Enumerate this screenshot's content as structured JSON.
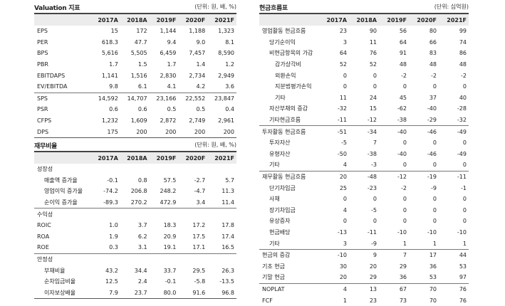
{
  "valuation": {
    "title": "Valuation 지표",
    "unit": "(단위: 원, 배, %)",
    "columns": [
      "",
      "2017A",
      "2018A",
      "2019F",
      "2020F",
      "2021F"
    ],
    "rows": [
      {
        "label": "EPS",
        "values": [
          "15",
          "172",
          "1,144",
          "1,188",
          "1,323"
        ]
      },
      {
        "label": "PER",
        "values": [
          "618.3",
          "47.7",
          "9.4",
          "9.0",
          "8.1"
        ]
      },
      {
        "label": "BPS",
        "values": [
          "5,616",
          "5,505",
          "6,459",
          "7,457",
          "8,590"
        ]
      },
      {
        "label": "PBR",
        "values": [
          "1.7",
          "1.5",
          "1.7",
          "1.4",
          "1.2"
        ]
      },
      {
        "label": "EBITDAPS",
        "values": [
          "1,141",
          "1,516",
          "2,830",
          "2,734",
          "2,949"
        ]
      },
      {
        "label": "EV/EBITDA",
        "values": [
          "9.8",
          "6.1",
          "4.1",
          "4.2",
          "3.6"
        ]
      },
      {
        "label": "SPS",
        "values": [
          "14,592",
          "14,707",
          "23,166",
          "22,552",
          "23,847"
        ],
        "sep": true
      },
      {
        "label": "PSR",
        "values": [
          "0.6",
          "0.6",
          "0.5",
          "0.5",
          "0.4"
        ]
      },
      {
        "label": "CFPS",
        "values": [
          "1,232",
          "1,609",
          "2,872",
          "2,749",
          "2,961"
        ]
      },
      {
        "label": "DPS",
        "values": [
          "175",
          "200",
          "200",
          "200",
          "200"
        ]
      }
    ]
  },
  "ratios": {
    "title": "재무비율",
    "unit": "(단위: 원, 배, %)",
    "columns": [
      "",
      "2017A",
      "2018A",
      "2019F",
      "2020F",
      "2021F"
    ],
    "rows": [
      {
        "label": "성장성",
        "values": [
          "",
          "",
          "",
          "",
          ""
        ],
        "level": 1
      },
      {
        "label": "매출액 증가율",
        "values": [
          "-0.1",
          "0.8",
          "57.5",
          "-2.7",
          "5.7"
        ],
        "level": 2
      },
      {
        "label": "영업이익 증가율",
        "values": [
          "-74.2",
          "206.8",
          "248.2",
          "-4.7",
          "11.3"
        ],
        "level": 2
      },
      {
        "label": "순이익 증가율",
        "values": [
          "-89.3",
          "270.2",
          "472.9",
          "3.4",
          "11.4"
        ],
        "level": 2
      },
      {
        "label": "수익성",
        "values": [
          "",
          "",
          "",
          "",
          ""
        ],
        "level": 1,
        "sep": true
      },
      {
        "label": "ROIC",
        "values": [
          "1.0",
          "3.7",
          "18.3",
          "17.2",
          "17.8"
        ],
        "level": 1
      },
      {
        "label": "ROA",
        "values": [
          "1.9",
          "6.2",
          "20.9",
          "17.5",
          "17.4"
        ],
        "level": 1
      },
      {
        "label": "ROE",
        "values": [
          "0.3",
          "3.1",
          "19.1",
          "17.1",
          "16.5"
        ],
        "level": 1
      },
      {
        "label": "안정성",
        "values": [
          "",
          "",
          "",
          "",
          ""
        ],
        "level": 1,
        "sep": true
      },
      {
        "label": "부채비율",
        "values": [
          "43.2",
          "34.4",
          "33.7",
          "29.5",
          "26.3"
        ],
        "level": 2
      },
      {
        "label": "순차입금비율",
        "values": [
          "12.5",
          "2.4",
          "-0.1",
          "-5.8",
          "-13.5"
        ],
        "level": 2
      },
      {
        "label": "이자보상배율",
        "values": [
          "7.9",
          "23.7",
          "80.0",
          "91.6",
          "96.8"
        ],
        "level": 2
      }
    ]
  },
  "cashflow": {
    "title": "현금흐름표",
    "unit": "(단위: 십억원)",
    "columns": [
      "",
      "2017A",
      "2018A",
      "2019F",
      "2020F",
      "2021F"
    ],
    "rows": [
      {
        "label": "영업활동 현금흐름",
        "values": [
          "23",
          "90",
          "56",
          "80",
          "99"
        ],
        "level": 1
      },
      {
        "label": "당기순이익",
        "values": [
          "3",
          "11",
          "64",
          "66",
          "74"
        ],
        "level": 2
      },
      {
        "label": "비현금항목의 가감",
        "values": [
          "64",
          "76",
          "91",
          "83",
          "86"
        ],
        "level": 2
      },
      {
        "label": "감가상각비",
        "values": [
          "52",
          "52",
          "48",
          "48",
          "48"
        ],
        "level": 3
      },
      {
        "label": "외환손익",
        "values": [
          "0",
          "0",
          "-2",
          "-2",
          "-2"
        ],
        "level": 3
      },
      {
        "label": "지분법평가손익",
        "values": [
          "0",
          "0",
          "0",
          "0",
          "0"
        ],
        "level": 3
      },
      {
        "label": "기타",
        "values": [
          "11",
          "24",
          "45",
          "37",
          "40"
        ],
        "level": 3
      },
      {
        "label": "자산부채의 증감",
        "values": [
          "-32",
          "15",
          "-62",
          "-40",
          "-28"
        ],
        "level": 2
      },
      {
        "label": "기타현금흐름",
        "values": [
          "-11",
          "-12",
          "-38",
          "-29",
          "-32"
        ],
        "level": 2
      },
      {
        "label": "투자활동 현금흐름",
        "values": [
          "-51",
          "-34",
          "-40",
          "-46",
          "-49"
        ],
        "level": 1,
        "sep": true
      },
      {
        "label": "투자자산",
        "values": [
          "-5",
          "7",
          "0",
          "0",
          "0"
        ],
        "level": 2
      },
      {
        "label": "유형자산",
        "values": [
          "-50",
          "-38",
          "-40",
          "-46",
          "-49"
        ],
        "level": 2
      },
      {
        "label": "기타",
        "values": [
          "4",
          "-3",
          "0",
          "0",
          "0"
        ],
        "level": 2
      },
      {
        "label": "재무활동 현금흐름",
        "values": [
          "20",
          "-48",
          "-12",
          "-19",
          "-11"
        ],
        "level": 1,
        "sep": true
      },
      {
        "label": "단기차입금",
        "values": [
          "25",
          "-23",
          "-2",
          "-9",
          "-1"
        ],
        "level": 2
      },
      {
        "label": "사채",
        "values": [
          "0",
          "0",
          "0",
          "0",
          "0"
        ],
        "level": 2
      },
      {
        "label": "장기차입금",
        "values": [
          "4",
          "-5",
          "0",
          "0",
          "0"
        ],
        "level": 2
      },
      {
        "label": "유상증자",
        "values": [
          "0",
          "0",
          "0",
          "0",
          "0"
        ],
        "level": 2
      },
      {
        "label": "현금배당",
        "values": [
          "-13",
          "-11",
          "-10",
          "-10",
          "-10"
        ],
        "level": 2
      },
      {
        "label": "기타",
        "values": [
          "3",
          "-9",
          "1",
          "1",
          "1"
        ],
        "level": 2
      },
      {
        "label": "현금의 증감",
        "values": [
          "-10",
          "9",
          "7",
          "17",
          "44"
        ],
        "level": 1,
        "sep": true
      },
      {
        "label": "기초 현금",
        "values": [
          "30",
          "20",
          "29",
          "36",
          "53"
        ],
        "level": 1
      },
      {
        "label": "기말 현금",
        "values": [
          "20",
          "29",
          "36",
          "53",
          "97"
        ],
        "level": 1
      },
      {
        "label": "NOPLAT",
        "values": [
          "4",
          "13",
          "67",
          "70",
          "76"
        ],
        "level": 1,
        "sep": true
      },
      {
        "label": "FCF",
        "values": [
          "1",
          "23",
          "73",
          "70",
          "76"
        ],
        "level": 1
      }
    ]
  }
}
